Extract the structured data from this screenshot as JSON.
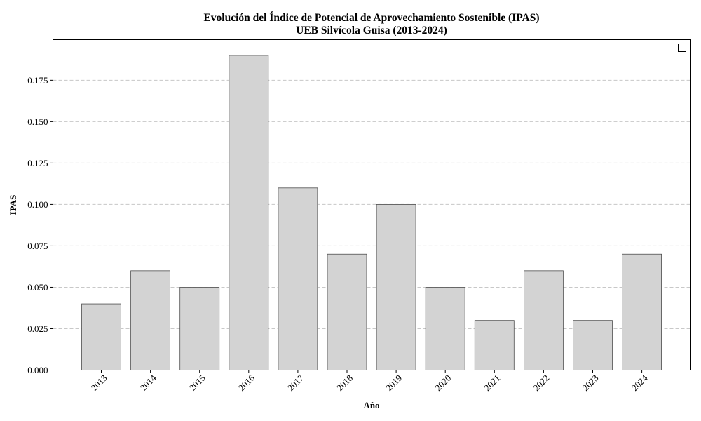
{
  "chart_data": {
    "type": "bar",
    "title": "Evolución del Índice de Potencial de Aprovechamiento Sostenible (IPAS)",
    "subtitle": "UEB Silvícola Guisa (2013-2024)",
    "xlabel": "Año",
    "ylabel": "IPAS",
    "categories": [
      "2013",
      "2014",
      "2015",
      "2016",
      "2017",
      "2018",
      "2019",
      "2020",
      "2021",
      "2022",
      "2023",
      "2024"
    ],
    "values": [
      0.04,
      0.06,
      0.05,
      0.19,
      0.11,
      0.07,
      0.1,
      0.05,
      0.03,
      0.06,
      0.03,
      0.07
    ],
    "ylim": [
      0,
      0.1995
    ],
    "yticks": [
      "0.000",
      "0.025",
      "0.050",
      "0.075",
      "0.100",
      "0.125",
      "0.150",
      "0.175"
    ],
    "grid": "y-dashed",
    "legend": "top-right (empty)",
    "colors": {
      "bar_fill": "#d3d3d3",
      "bar_edge": "#4d4d4d",
      "grid": "#c8c8c8"
    }
  }
}
